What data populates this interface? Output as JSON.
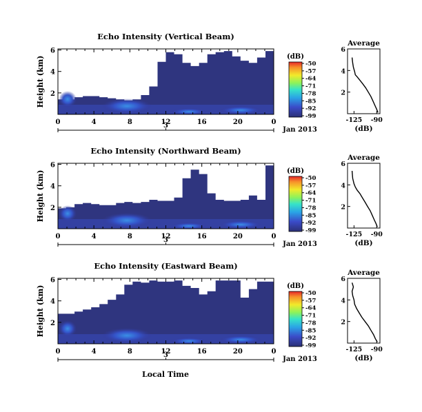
{
  "chart_data": [
    {
      "type": "heatmap",
      "title": "Echo Intensity (Vertical Beam)",
      "ylabel": "Height (km)",
      "yticks": [
        "6",
        "4",
        "2"
      ],
      "xticks": [
        "0",
        "4",
        "8",
        "12",
        "16",
        "20",
        "0"
      ],
      "date_ticks": [
        "3"
      ],
      "date_label": "Jan 2013",
      "colorbar": {
        "unit": "(dB)",
        "ticks": [
          "-50",
          "-57",
          "-64",
          "-71",
          "-78",
          "-85",
          "-92",
          "-99"
        ],
        "range": [
          -99,
          -50
        ]
      },
      "columns_km": [
        1.4,
        1.4,
        1.6,
        1.7,
        1.7,
        1.6,
        1.5,
        1.4,
        1.3,
        1.4,
        1.8,
        2.6,
        4.9,
        5.8,
        5.6,
        4.8,
        4.5,
        4.8,
        5.6,
        5.8,
        5.9,
        5.4,
        5.0,
        4.8,
        5.3,
        5.9
      ]
    },
    {
      "type": "heatmap",
      "title": "Echo Intensity (Northward Beam)",
      "ylabel": "Height (km)",
      "yticks": [
        "6",
        "4",
        "2"
      ],
      "xticks": [
        "0",
        "4",
        "8",
        "12",
        "16",
        "20",
        "0"
      ],
      "date_ticks": [
        "3"
      ],
      "date_label": "Jan 2013",
      "colorbar": {
        "unit": "(dB)",
        "ticks": [
          "-50",
          "-57",
          "-64",
          "-71",
          "-78",
          "-85",
          "-92",
          "-99"
        ],
        "range": [
          -99,
          -50
        ]
      },
      "columns_km": [
        1.9,
        2.0,
        2.3,
        2.4,
        2.3,
        2.2,
        2.2,
        2.4,
        2.5,
        2.4,
        2.5,
        2.7,
        2.6,
        2.6,
        2.9,
        4.7,
        5.5,
        5.1,
        3.3,
        2.7,
        2.6,
        2.6,
        2.7,
        3.1,
        2.7,
        5.9
      ]
    },
    {
      "type": "heatmap",
      "title": "Echo Intensity (Eastward Beam)",
      "ylabel": "Height (km)",
      "yticks": [
        "6",
        "4",
        "2"
      ],
      "xticks": [
        "0",
        "4",
        "8",
        "12",
        "16",
        "20",
        "0"
      ],
      "date_ticks": [
        "3"
      ],
      "date_label": "Jan 2013",
      "colorbar": {
        "unit": "(dB)",
        "ticks": [
          "-50",
          "-57",
          "-64",
          "-71",
          "-78",
          "-85",
          "-92",
          "-99"
        ],
        "range": [
          -99,
          -50
        ]
      },
      "columns_km": [
        2.8,
        2.8,
        3.0,
        3.2,
        3.4,
        3.7,
        4.1,
        4.6,
        5.5,
        5.8,
        5.7,
        5.9,
        5.8,
        5.8,
        5.9,
        5.4,
        5.2,
        4.6,
        4.9,
        5.9,
        5.9,
        5.9,
        4.3,
        5.1,
        5.8,
        5.8
      ]
    },
    {
      "type": "line",
      "title": "Average",
      "xlabel": "(dB)",
      "xticks": [
        "-125",
        "-90"
      ],
      "yticks": [
        "6",
        "4",
        "2"
      ],
      "xlim": [
        -135,
        -85
      ],
      "ylim": [
        0,
        6
      ],
      "x": [
        -88,
        -90,
        -93,
        -96,
        -99,
        -103,
        -107,
        -112,
        -116,
        -120,
        -123,
        -124,
        -126,
        -127,
        -128
      ],
      "y": [
        0.1,
        0.4,
        0.8,
        1.2,
        1.6,
        2.0,
        2.4,
        2.8,
        3.1,
        3.4,
        3.6,
        3.9,
        4.3,
        4.7,
        5.2
      ]
    },
    {
      "type": "line",
      "title": "Average",
      "xlabel": "(dB)",
      "xticks": [
        "-125",
        "-90"
      ],
      "yticks": [
        "6",
        "4",
        "2"
      ],
      "xlim": [
        -135,
        -85
      ],
      "ylim": [
        0,
        6
      ],
      "x": [
        -89,
        -91,
        -94,
        -97,
        -100,
        -104,
        -108,
        -112,
        -116,
        -120,
        -123,
        -125,
        -127,
        -128
      ],
      "y": [
        0.1,
        0.4,
        0.8,
        1.2,
        1.6,
        2.0,
        2.4,
        2.8,
        3.2,
        3.5,
        3.8,
        4.1,
        4.6,
        5.3
      ]
    },
    {
      "type": "line",
      "title": "Average",
      "xlabel": "(dB)",
      "xticks": [
        "-125",
        "-90"
      ],
      "yticks": [
        "6",
        "4",
        "2"
      ],
      "xlim": [
        -135,
        -85
      ],
      "ylim": [
        0,
        6
      ],
      "x": [
        -89,
        -92,
        -95,
        -99,
        -103,
        -108,
        -113,
        -117,
        -121,
        -124,
        -125,
        -127,
        -128,
        -126,
        -128
      ],
      "y": [
        0.1,
        0.4,
        0.8,
        1.2,
        1.6,
        2.0,
        2.4,
        2.8,
        3.2,
        3.6,
        4.0,
        4.4,
        4.8,
        5.2,
        5.6
      ]
    }
  ],
  "footer": {
    "xlabel": "Local Time"
  }
}
